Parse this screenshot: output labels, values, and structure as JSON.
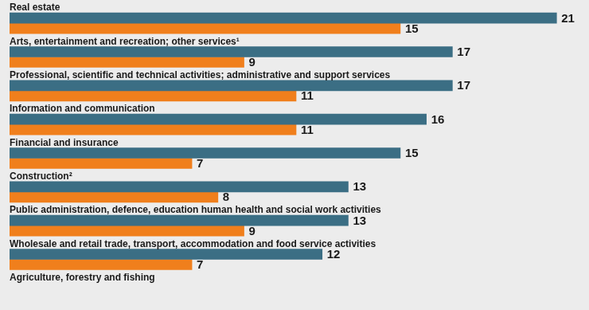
{
  "chart_data": {
    "type": "bar",
    "orientation": "horizontal",
    "categories": [
      "Real estate",
      "Arts, entertainment and recreation; other services¹",
      "Professional, scientific and technical activities; administrative and support services",
      "Information and communication",
      "Financial and insurance",
      "Construction²",
      "Public administration, defence, education human health and social work activities",
      "Wholesale and retail trade, transport, accommodation and food service activities",
      "Agriculture, forestry and fishing"
    ],
    "series": [
      {
        "color": "#3b6e84",
        "values": [
          21,
          17,
          17,
          16,
          15,
          13,
          13,
          12,
          null
        ]
      },
      {
        "color": "#f07f1c",
        "values": [
          15,
          9,
          11,
          11,
          7,
          8,
          9,
          7,
          null
        ]
      }
    ],
    "xlim": [
      0,
      22
    ],
    "data_labels": true,
    "tick_labels": false,
    "grid": false
  }
}
